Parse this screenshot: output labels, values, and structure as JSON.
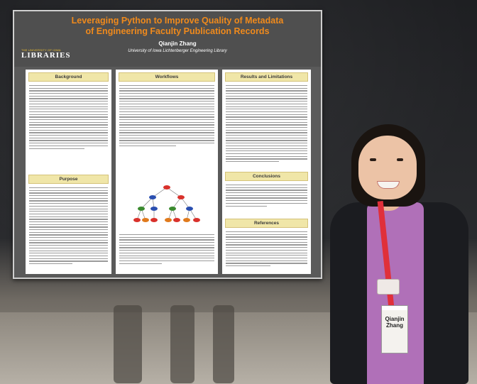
{
  "poster": {
    "title": "Leveraging Python to Improve Quality of Metadata of Engineering Faculty Publication Records",
    "author": "Qianjin Zhang",
    "affiliation": "University of Iowa Lichtenberger Engineering Library",
    "logo": {
      "line1": "THE UNIVERSITY OF IOWA",
      "line2": "LIBRARIES"
    },
    "sections": {
      "background": "Background",
      "purpose": "Purpose",
      "workflows": "Workflows",
      "results": "Results and Limitations",
      "conclusions": "Conclusions",
      "references": "References"
    }
  },
  "badge": {
    "name": "Qianjin Zhang"
  },
  "colors": {
    "title": "#f08a1c",
    "poster_bg": "#5a5a5a",
    "section_header": "#f0e6a8"
  }
}
